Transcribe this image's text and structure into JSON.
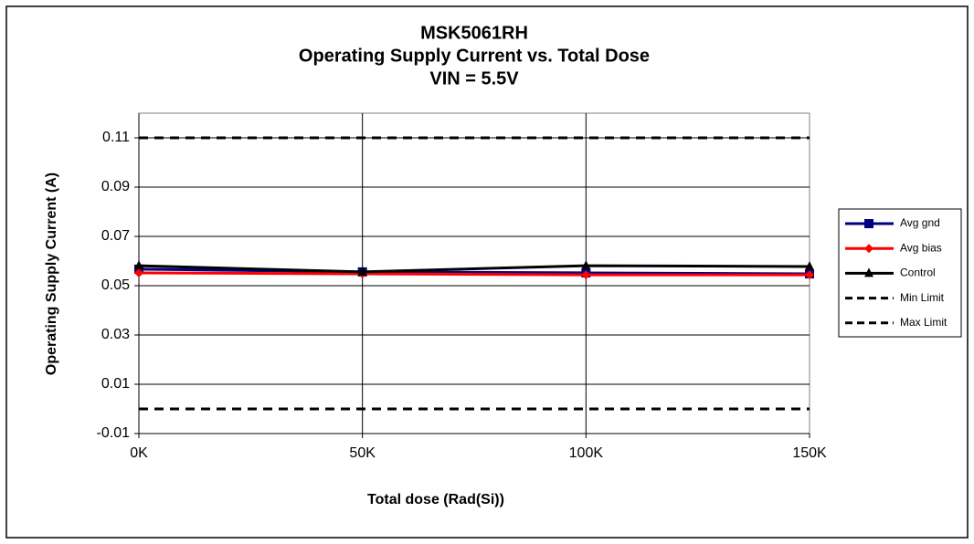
{
  "chart_data": {
    "type": "line",
    "title": [
      "MSK5061RH",
      "Operating Supply Current vs. Total Dose",
      "VIN = 5.5V"
    ],
    "x_label": "Total dose (Rad(Si))",
    "y_label": "Operating Supply Current (A)",
    "categories": [
      "0K",
      "50K",
      "100K",
      "150K"
    ],
    "series": [
      {
        "name": "Avg gnd",
        "color": "#000080",
        "marker": "square",
        "dashed": false,
        "values": [
          0.0567,
          0.0556,
          0.0552,
          0.0548
        ]
      },
      {
        "name": "Avg bias",
        "color": "#ff0000",
        "marker": "diamond",
        "dashed": false,
        "values": [
          0.0552,
          0.0548,
          0.0544,
          0.0544
        ]
      },
      {
        "name": "Control",
        "color": "#000000",
        "marker": "triangle",
        "dashed": false,
        "values": [
          0.0581,
          0.0556,
          0.0581,
          0.0578
        ]
      },
      {
        "name": "Min Limit",
        "color": "#000000",
        "marker": "none",
        "dashed": true,
        "values": [
          0,
          0,
          0,
          0
        ]
      },
      {
        "name": "Max Limit",
        "color": "#000000",
        "marker": "none",
        "dashed": true,
        "values": [
          0.11,
          0.11,
          0.11,
          0.11
        ]
      }
    ],
    "ylim": [
      -0.01,
      0.12
    ],
    "yticks": [
      -0.01,
      0.01,
      0.03,
      0.05,
      0.07,
      0.09,
      0.11
    ],
    "grid": true,
    "legend": "right"
  }
}
